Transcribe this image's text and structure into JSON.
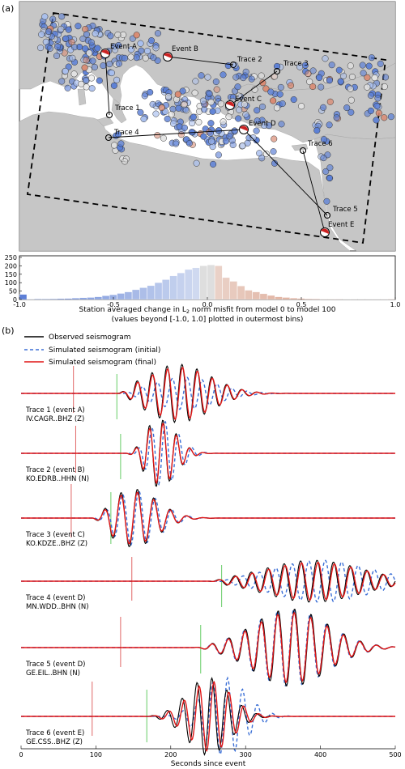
{
  "figure": {
    "panel_a_label": "(a)",
    "panel_b_label": "(b)"
  },
  "map": {
    "events": [
      {
        "label": "Event A"
      },
      {
        "label": "Event B"
      },
      {
        "label": "Event C"
      },
      {
        "label": "Event D"
      },
      {
        "label": "Event E"
      }
    ],
    "traces": [
      {
        "label": "Trace 1"
      },
      {
        "label": "Trace 2"
      },
      {
        "label": "Trace 3"
      },
      {
        "label": "Trace 4"
      },
      {
        "label": "Trace 5"
      },
      {
        "label": "Trace 6"
      }
    ],
    "colors": {
      "sea": "#ffffff",
      "land": "#c6c6c6",
      "blue": "#5b7fd6",
      "neutral": "#e2e2e2",
      "red": "#d98a72",
      "event_fill": "#cc2222"
    }
  },
  "histogram": {
    "xlabel_line1": "Station averaged change in L",
    "xlabel_sub": "2",
    "xlabel_line1_rest": " norm misfit from model 0 to model 100",
    "xlabel_line2": "(values beyond [-1.0, 1.0] plotted in outermost bins)"
  },
  "legend": {
    "observed": "Observed seismogram",
    "initial": "Simulated seismogram (initial)",
    "final": "Simulated seismogram (final)"
  },
  "seismograms": {
    "traces": [
      {
        "line1": "Trace 1 (event A)",
        "line2": "IV.CAGR..BHZ (Z)"
      },
      {
        "line1": "Trace 2 (event B)",
        "line2": "KO.EDRB..HHN (N)"
      },
      {
        "line1": "Trace 3 (event C)",
        "line2": "KO.KDZE..BHZ (Z)"
      },
      {
        "line1": "Trace 4 (event D)",
        "line2": "MN.WDD..BHN (N)"
      },
      {
        "line1": "Trace 5 (event D)",
        "line2": "GE.EIL..BHN (N)"
      },
      {
        "line1": "Trace 6 (event E)",
        "line2": "GE.CSS..BHZ (Z)"
      }
    ],
    "xlabel": "Seconds since event",
    "colors": {
      "observed": "#000000",
      "initial": "#3b6fd6",
      "final": "#e01414",
      "red_marker": "#e06666",
      "green_marker": "#66cc66"
    }
  },
  "chart_data": [
    {
      "type": "bar",
      "title": "",
      "xlabel": "Station averaged change in L2 norm misfit from model 0 to model 100",
      "ylabel": "",
      "xlim": [
        -1.0,
        1.0
      ],
      "ylim": [
        0,
        250
      ],
      "yticks": [
        "0",
        "50",
        "100",
        "150",
        "200",
        "250"
      ],
      "xticks": [
        "-1.0",
        "-0.5",
        "0.0",
        "0.5",
        "1.0"
      ],
      "bin_width": 0.04,
      "bin_starts": [
        -1.0,
        -0.96,
        -0.92,
        -0.88,
        -0.84,
        -0.8,
        -0.76,
        -0.72,
        -0.68,
        -0.64,
        -0.6,
        -0.56,
        -0.52,
        -0.48,
        -0.44,
        -0.4,
        -0.36,
        -0.32,
        -0.28,
        -0.24,
        -0.2,
        -0.16,
        -0.12,
        -0.08,
        -0.04,
        0.0,
        0.04,
        0.08,
        0.12,
        0.16,
        0.2,
        0.24,
        0.28,
        0.32,
        0.36,
        0.4,
        0.44,
        0.48,
        0.52,
        0.56,
        0.6,
        0.64,
        0.68,
        0.72,
        0.76,
        0.8,
        0.84,
        0.88,
        0.92,
        0.96
      ],
      "values": [
        30,
        2,
        3,
        3,
        4,
        5,
        6,
        8,
        10,
        12,
        16,
        22,
        28,
        36,
        45,
        58,
        70,
        82,
        100,
        118,
        140,
        158,
        178,
        188,
        200,
        205,
        200,
        130,
        108,
        80,
        55,
        45,
        34,
        24,
        16,
        12,
        8,
        6,
        4,
        3,
        2,
        2,
        2,
        1,
        1,
        1,
        1,
        1,
        1,
        2
      ]
    },
    {
      "type": "line",
      "title": "",
      "xlabel": "Seconds since event",
      "xlim": [
        0,
        500
      ],
      "xticks": [
        "0",
        "100",
        "200",
        "300",
        "400",
        "500"
      ],
      "series_names": [
        "Observed seismogram",
        "Simulated seismogram (initial)",
        "Simulated seismogram (final)"
      ],
      "panels": [
        {
          "trace": "Trace 1 (event A)",
          "red_marker_s": 70,
          "green_marker_s": 128,
          "onset_s": 128,
          "peak_s": 210,
          "amp": 1.0,
          "period_s": 20,
          "decay_s": 60,
          "initial_shift_s": 8,
          "initial_amp": 0.55
        },
        {
          "trace": "Trace 2 (event B)",
          "red_marker_s": 73,
          "green_marker_s": 133,
          "onset_s": 140,
          "peak_s": 185,
          "amp": 1.0,
          "period_s": 18,
          "decay_s": 30,
          "initial_shift_s": 4,
          "initial_amp": 0.95
        },
        {
          "trace": "Trace 3 (event C)",
          "red_marker_s": 67,
          "green_marker_s": 120,
          "onset_s": 95,
          "peak_s": 150,
          "amp": 1.0,
          "period_s": 22,
          "decay_s": 45,
          "initial_shift_s": 3,
          "initial_amp": 0.95
        },
        {
          "trace": "Trace 4 (event D)",
          "red_marker_s": 148,
          "green_marker_s": 268,
          "onset_s": 250,
          "peak_s": 390,
          "amp": 0.6,
          "period_s": 22,
          "decay_s": 90,
          "initial_shift_s": 12,
          "initial_amp": 1.0
        },
        {
          "trace": "Trace 5 (event D)",
          "red_marker_s": 133,
          "green_marker_s": 240,
          "onset_s": 230,
          "peak_s": 360,
          "amp": 0.35,
          "period_s": 22,
          "decay_s": 70,
          "initial_shift_s": 0,
          "initial_amp": 1.0
        },
        {
          "trace": "Trace 6 (event E)",
          "red_marker_s": 95,
          "green_marker_s": 168,
          "onset_s": 160,
          "peak_s": 250,
          "amp": 0.5,
          "period_s": 20,
          "decay_s": 40,
          "initial_shift_s": 22,
          "initial_amp": 1.0
        }
      ]
    }
  ]
}
